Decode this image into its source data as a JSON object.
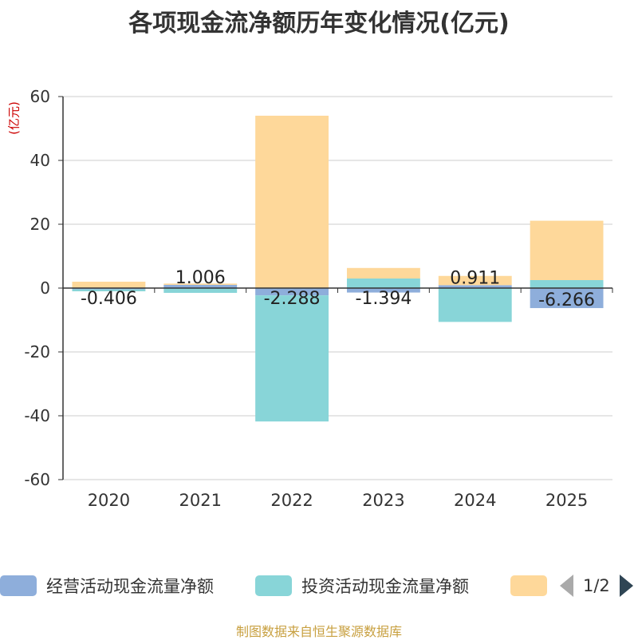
{
  "title": "各项现金流净额历年变化情况(亿元)",
  "unit": "(亿元)",
  "source": "制图数据来自恒生聚源数据库",
  "legend": {
    "items": [
      {
        "label": "经营活动现金流量净额",
        "color": "#8eaedb"
      },
      {
        "label": "投资活动现金流量净额",
        "color": "#88d5d8"
      },
      {
        "label": "",
        "color": "#fed89a"
      }
    ],
    "page": "1/2"
  },
  "chart_data": {
    "type": "bar",
    "stacked": true,
    "categories": [
      "2020",
      "2021",
      "2022",
      "2023",
      "2024",
      "2025"
    ],
    "ylim": [
      -60,
      60
    ],
    "yticks": [
      60,
      40,
      20,
      0,
      -20,
      -40,
      -60
    ],
    "series": [
      {
        "name": "经营活动现金流量净额",
        "color": "#8eaedb",
        "values": [
          -0.406,
          1.006,
          -2.288,
          -1.394,
          0.911,
          -6.266
        ],
        "labels": [
          "-0.406",
          "1.006",
          "-2.288",
          "-1.394",
          "0.911",
          "-6.266"
        ]
      },
      {
        "name": "投资活动现金流量净额",
        "color": "#88d5d8",
        "values": [
          -0.6,
          -1.5,
          -39.5,
          3.0,
          -10.6,
          2.5
        ]
      },
      {
        "name": "",
        "color": "#fed89a",
        "values": [
          2.0,
          0.4,
          54.0,
          3.3,
          2.9,
          18.6
        ]
      }
    ]
  }
}
